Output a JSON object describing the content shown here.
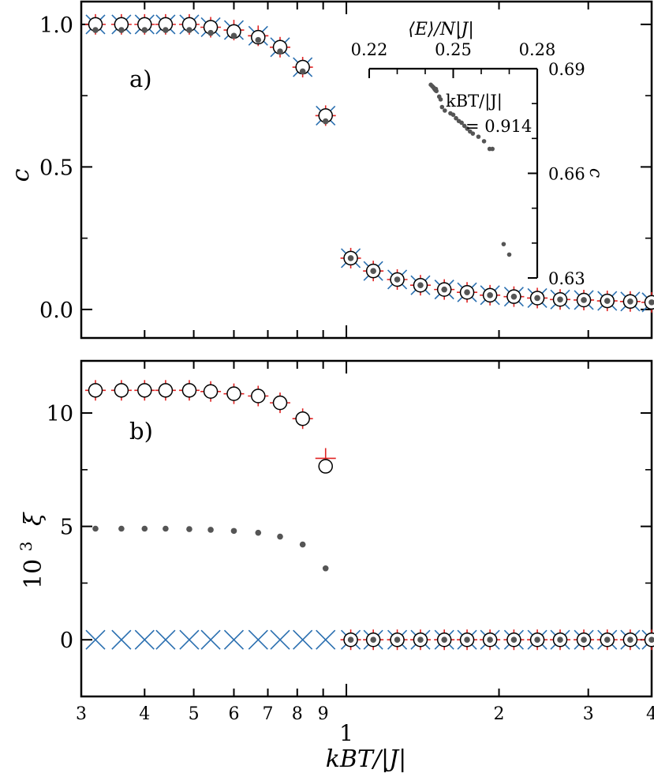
{
  "chart_data": [
    {
      "type": "scatter",
      "panel_label": "a)",
      "ylabel": "c",
      "xlabel": "",
      "x_scale": "log",
      "xlim": [
        0.3,
        4
      ],
      "ylim": [
        -0.1,
        1.08
      ],
      "yticks": [
        0.0,
        0.5,
        1.0
      ],
      "ytick_labels": [
        "0.0",
        "0.5",
        "1.0"
      ],
      "grid": false,
      "x": [
        0.32,
        0.36,
        0.4,
        0.44,
        0.49,
        0.54,
        0.6,
        0.67,
        0.74,
        0.82,
        0.91,
        1.02,
        1.13,
        1.26,
        1.4,
        1.56,
        1.73,
        1.92,
        2.14,
        2.38,
        2.64,
        2.94,
        3.27,
        3.63,
        4.0
      ],
      "series": [
        {
          "marker": "plus",
          "color": "#e02424",
          "values": [
            1.0,
            1.0,
            1.0,
            1.0,
            1.0,
            0.99,
            0.98,
            0.96,
            0.92,
            0.85,
            0.68,
            0.18,
            0.135,
            0.105,
            0.085,
            0.07,
            0.06,
            0.05,
            0.045,
            0.04,
            0.035,
            0.033,
            0.03,
            0.028,
            0.025
          ]
        },
        {
          "marker": "x",
          "color": "#2a6fb0",
          "values": [
            1.0,
            1.0,
            1.0,
            1.0,
            1.0,
            0.99,
            0.98,
            0.96,
            0.92,
            0.85,
            0.68,
            0.18,
            0.135,
            0.105,
            0.085,
            0.07,
            0.06,
            0.05,
            0.045,
            0.04,
            0.035,
            0.033,
            0.03,
            0.028,
            0.025
          ]
        },
        {
          "marker": "circle",
          "color": "#000000",
          "values": [
            1.0,
            1.0,
            1.0,
            1.0,
            1.0,
            0.99,
            0.975,
            0.955,
            0.92,
            0.85,
            0.68,
            0.18,
            0.135,
            0.105,
            0.085,
            0.07,
            0.06,
            0.05,
            0.045,
            0.04,
            0.035,
            0.033,
            0.03,
            0.028,
            0.025
          ]
        },
        {
          "marker": "dot",
          "color": "#555555",
          "values": [
            0.98,
            0.98,
            0.98,
            0.98,
            0.98,
            0.97,
            0.96,
            0.945,
            0.905,
            0.835,
            0.66,
            0.18,
            0.135,
            0.105,
            0.085,
            0.07,
            0.06,
            0.05,
            0.045,
            0.04,
            0.035,
            0.033,
            0.03,
            0.028,
            0.025
          ]
        }
      ],
      "inset": {
        "type": "scatter",
        "xlabel": "⟨E⟩/N|J|",
        "ylabel": "c",
        "xlim": [
          0.22,
          0.28
        ],
        "ylim": [
          0.63,
          0.69
        ],
        "xticks": [
          0.22,
          0.25,
          0.28
        ],
        "xtick_labels": [
          "0.22",
          "0.25",
          "0.28"
        ],
        "yticks": [
          0.63,
          0.66,
          0.69
        ],
        "ytick_labels": [
          "0.63",
          "0.66",
          "0.69"
        ],
        "annotation_line1": "kBT/|J|",
        "annotation_line2": "= 0.914",
        "color": "#555555",
        "x": [
          0.242,
          0.2425,
          0.243,
          0.2432,
          0.2435,
          0.2437,
          0.244,
          0.2438,
          0.245,
          0.2455,
          0.246,
          0.247,
          0.249,
          0.25,
          0.251,
          0.252,
          0.253,
          0.254,
          0.255,
          0.256,
          0.257,
          0.259,
          0.261,
          0.263,
          0.264,
          0.268,
          0.27
        ],
        "y": [
          0.6854,
          0.685,
          0.6846,
          0.6843,
          0.684,
          0.6838,
          0.6836,
          0.6842,
          0.682,
          0.6812,
          0.679,
          0.678,
          0.6772,
          0.6768,
          0.6758,
          0.675,
          0.6745,
          0.6736,
          0.6728,
          0.672,
          0.6714,
          0.6705,
          0.6692,
          0.667,
          0.667,
          0.6397,
          0.6367
        ]
      }
    },
    {
      "type": "scatter",
      "panel_label": "b)",
      "ylabel": "10³ ξ",
      "ylabel_base": "10",
      "ylabel_exp": "3",
      "ylabel_var": "ξ",
      "xlabel": "kBT/|J|",
      "x_scale": "log",
      "xlim": [
        0.3,
        4
      ],
      "ylim": [
        -2.5,
        12.3
      ],
      "yticks": [
        0,
        5,
        10
      ],
      "ytick_labels": [
        "0",
        "5",
        "10"
      ],
      "xticks": [
        0.3,
        0.4,
        0.5,
        0.6,
        0.7,
        0.8,
        0.9,
        1,
        2,
        3,
        4
      ],
      "xtick_labels": [
        "3",
        "4",
        "5",
        "6",
        "7",
        "8",
        "9",
        "1",
        "2",
        "3",
        "4"
      ],
      "grid": false,
      "x": [
        0.32,
        0.36,
        0.4,
        0.44,
        0.49,
        0.54,
        0.6,
        0.67,
        0.74,
        0.82,
        0.91,
        1.02,
        1.13,
        1.26,
        1.4,
        1.56,
        1.73,
        1.92,
        2.14,
        2.38,
        2.64,
        2.94,
        3.27,
        3.63,
        4.0
      ],
      "series": [
        {
          "marker": "plus",
          "color": "#e02424",
          "values": [
            11.0,
            11.0,
            11.0,
            11.0,
            11.0,
            10.95,
            10.85,
            10.75,
            10.45,
            9.75,
            8.0,
            0,
            0,
            0,
            0,
            0,
            0,
            0,
            0,
            0,
            0,
            0,
            0,
            0,
            0
          ]
        },
        {
          "marker": "x",
          "color": "#2a6fb0",
          "values": [
            0,
            0,
            0,
            0,
            0,
            0,
            0,
            0,
            0,
            0,
            0,
            0,
            0,
            0,
            0,
            0,
            0,
            0,
            0,
            0,
            0,
            0,
            0,
            0,
            0
          ]
        },
        {
          "marker": "circle",
          "color": "#000000",
          "values": [
            11.0,
            11.0,
            11.0,
            11.0,
            11.0,
            10.95,
            10.85,
            10.75,
            10.45,
            9.75,
            7.65,
            0,
            0,
            0,
            0,
            0,
            0,
            0,
            0,
            0,
            0,
            0,
            0,
            0,
            0
          ]
        },
        {
          "marker": "dot",
          "color": "#555555",
          "values": [
            4.9,
            4.9,
            4.9,
            4.9,
            4.88,
            4.85,
            4.8,
            4.72,
            4.55,
            4.2,
            3.15,
            0,
            0,
            0,
            0,
            0,
            0,
            0,
            0,
            0,
            0,
            0,
            0,
            0,
            0
          ]
        }
      ]
    }
  ]
}
